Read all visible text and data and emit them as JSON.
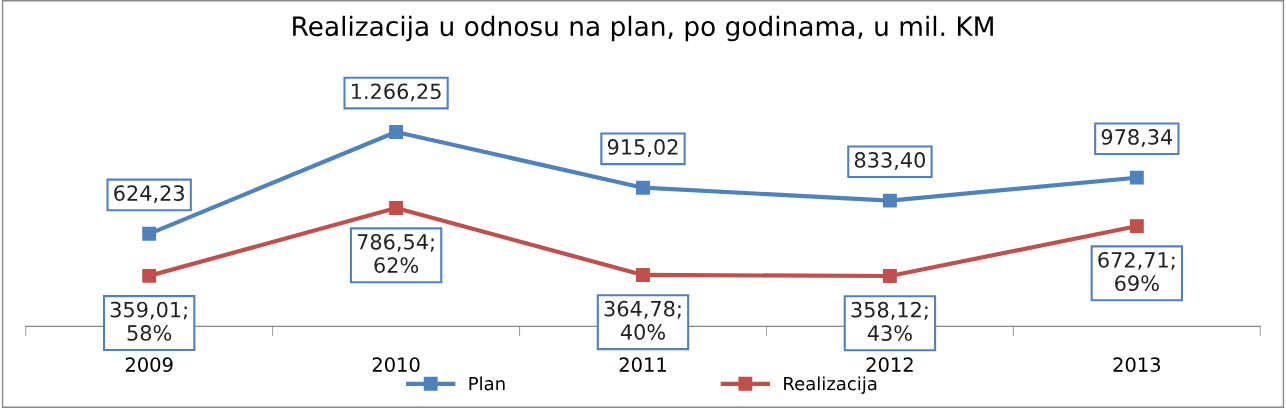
{
  "chart_data": {
    "type": "line",
    "title": "Realizacija u odnosu na plan, po godinama, u mil. KM",
    "categories": [
      "2009",
      "2010",
      "2011",
      "2012",
      "2013"
    ],
    "series": [
      {
        "name": "Plan",
        "color": "#4f81bd",
        "values": [
          624.23,
          1266.25,
          915.02,
          833.4,
          978.34
        ],
        "value_labels": [
          "624,23",
          "1.266,25",
          "915,02",
          "833,40",
          "978,34"
        ]
      },
      {
        "name": "Realizacija",
        "color": "#c0504d",
        "values": [
          359.01,
          786.54,
          364.78,
          358.12,
          672.71
        ],
        "value_labels": [
          "359,01;\n58%",
          "786,54;\n62%",
          "364,78;\n40%",
          "358,12;\n43%",
          "672,71;\n69%"
        ]
      }
    ],
    "tick_labels": "x",
    "grid": false,
    "legend": "bottom",
    "marker": "square",
    "line_style": "solid"
  }
}
